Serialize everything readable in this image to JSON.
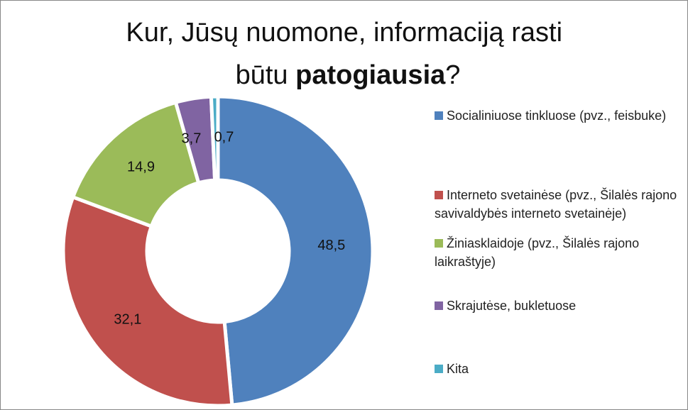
{
  "chart_data": {
    "type": "pie",
    "title": [
      "Kur, Jūsų nuomone, informaciją rasti",
      "būtu ",
      "patogiausia",
      "?"
    ],
    "title_bold": [
      false,
      false,
      true,
      false
    ],
    "categories": [
      "Socialiniuose tinkluose (pvz., feisbuke)",
      "Interneto svetainėse (pvz., Šilalės rajono savivaldybės interneto svetainėje)",
      "Žiniasklaidoje (pvz., Šilalės rajono laikraštyje)",
      "Skrajutėse, bukletuose",
      "Kita"
    ],
    "values": [
      48.5,
      32.1,
      14.9,
      3.7,
      0.7
    ],
    "value_labels": [
      "48,5",
      "32,1",
      "14,9",
      "3,7",
      "0,7"
    ],
    "colors": [
      "#4f81bd",
      "#c0504d",
      "#9bbb59",
      "#8064a2",
      "#4bacc6"
    ],
    "donut": true,
    "legend": "right"
  }
}
